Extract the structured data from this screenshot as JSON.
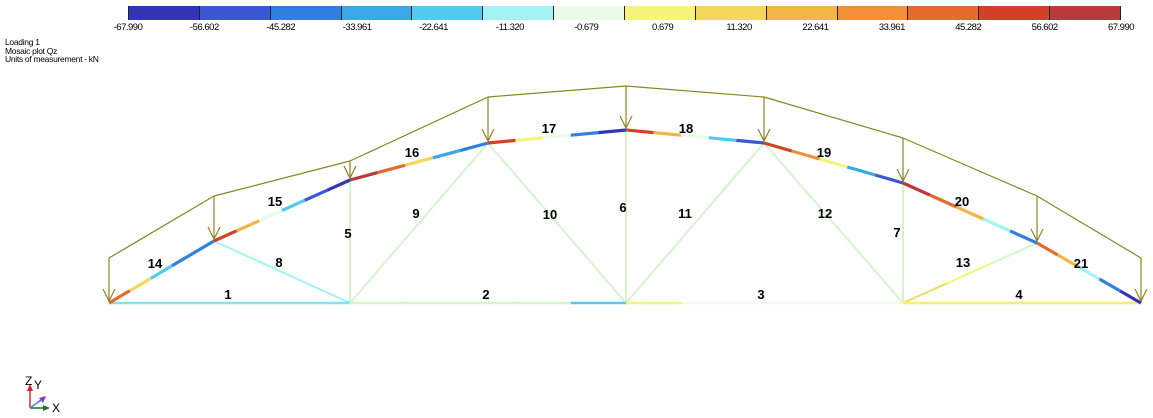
{
  "legend": {
    "colors": [
      "#3434b6",
      "#3b57d3",
      "#2f80df",
      "#3aa7e6",
      "#55c8ee",
      "#a3f2f6",
      "#eafbe8",
      "#f5f57a",
      "#f4d85e",
      "#f4b447",
      "#f2903a",
      "#e46b2c",
      "#d34128",
      "#b83a3a"
    ],
    "ticks": [
      "-67.990",
      "-56.602",
      "-45.282",
      "-33.961",
      "-22.641",
      "-11.320",
      "-0.679",
      "0.679",
      "11.320",
      "22.641",
      "33.961",
      "45.282",
      "56.602",
      "67.990"
    ]
  },
  "info": {
    "line1": "Loading 1",
    "line2": "Mosaic plot Qz",
    "line3": "Units of measurement - kN"
  },
  "elements": [
    {
      "label": "1"
    },
    {
      "label": "2"
    },
    {
      "label": "3"
    },
    {
      "label": "4"
    },
    {
      "label": "5"
    },
    {
      "label": "6"
    },
    {
      "label": "7"
    },
    {
      "label": "8"
    },
    {
      "label": "9"
    },
    {
      "label": "10"
    },
    {
      "label": "11"
    },
    {
      "label": "12"
    },
    {
      "label": "13"
    },
    {
      "label": "14"
    },
    {
      "label": "15"
    },
    {
      "label": "16"
    },
    {
      "label": "17"
    },
    {
      "label": "18"
    },
    {
      "label": "19"
    },
    {
      "label": "20"
    },
    {
      "label": "21"
    }
  ],
  "axes": {
    "z": "Z",
    "y": "Y",
    "x": "X"
  },
  "colors": {
    "load": "#8b8420",
    "bottom_cyan": "#7fe3f0",
    "bottom_yellow": "#f5f06a",
    "web": "#d4f5cc"
  }
}
